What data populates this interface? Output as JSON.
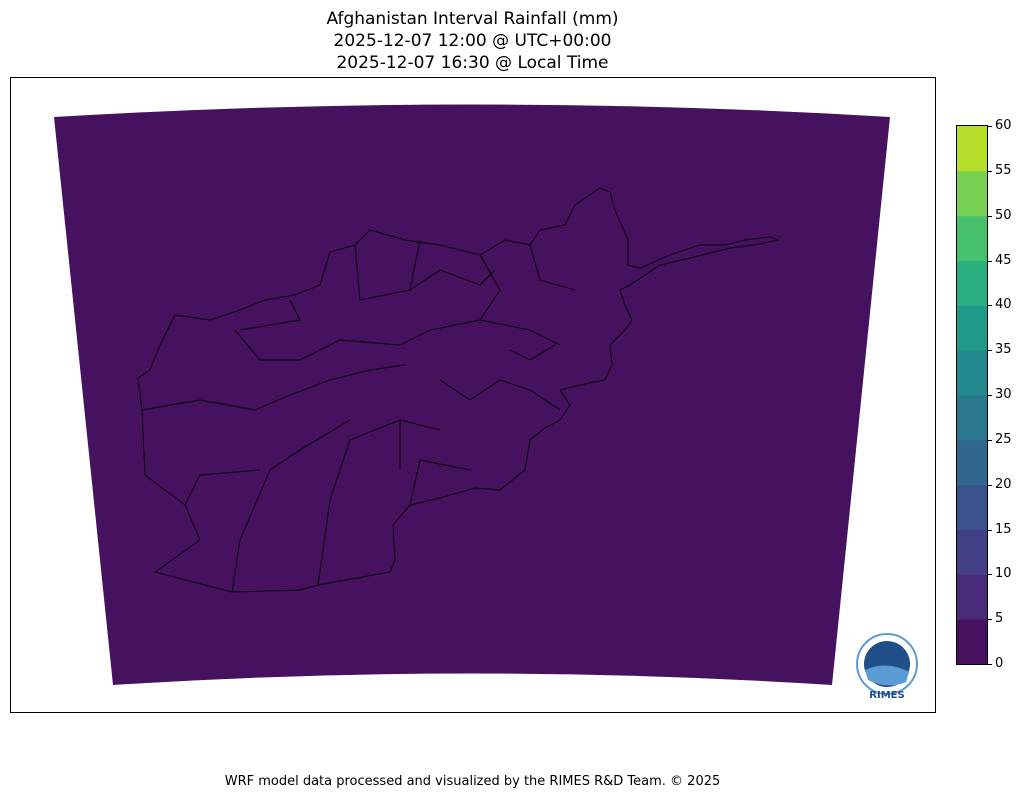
{
  "title": {
    "line1": "Afghanistan Interval Rainfall (mm)",
    "line2": "2025-12-07 12:00 @ UTC+00:00",
    "line3": "2025-12-07 16:30 @ Local Time"
  },
  "map": {
    "field_value_mm": "0-5 everywhere",
    "field_color": "#46125f",
    "boundary_color": "#000000"
  },
  "colorbar": {
    "ticks": [
      "0",
      "5",
      "10",
      "15",
      "20",
      "25",
      "30",
      "35",
      "40",
      "45",
      "50",
      "55",
      "60"
    ],
    "levels": [
      0,
      5,
      10,
      15,
      20,
      25,
      30,
      35,
      40,
      45,
      50,
      55,
      60
    ],
    "colors": [
      "#46125f",
      "#482b78",
      "#433f86",
      "#3a528b",
      "#31668e",
      "#2a788e",
      "#228a8d",
      "#1f9a8a",
      "#2bb07f",
      "#48c16e",
      "#77d152",
      "#b5de2b",
      "#e5e419"
    ]
  },
  "logo": {
    "text": "RIMES"
  },
  "footer": "WRF model data processed and visualized by the RIMES R&D Team. © 2025"
}
